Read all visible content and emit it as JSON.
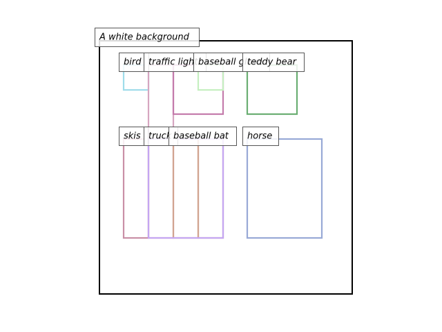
{
  "caption": "A white background",
  "boxes": [
    {
      "label": "bird"
    },
    {
      "label": "traffic light"
    },
    {
      "label": "baseball glove"
    },
    {
      "label": "teddy bear"
    },
    {
      "label": "skis"
    },
    {
      "label": "truck"
    },
    {
      "label": "baseball bat"
    },
    {
      "label": "horse"
    }
  ]
}
